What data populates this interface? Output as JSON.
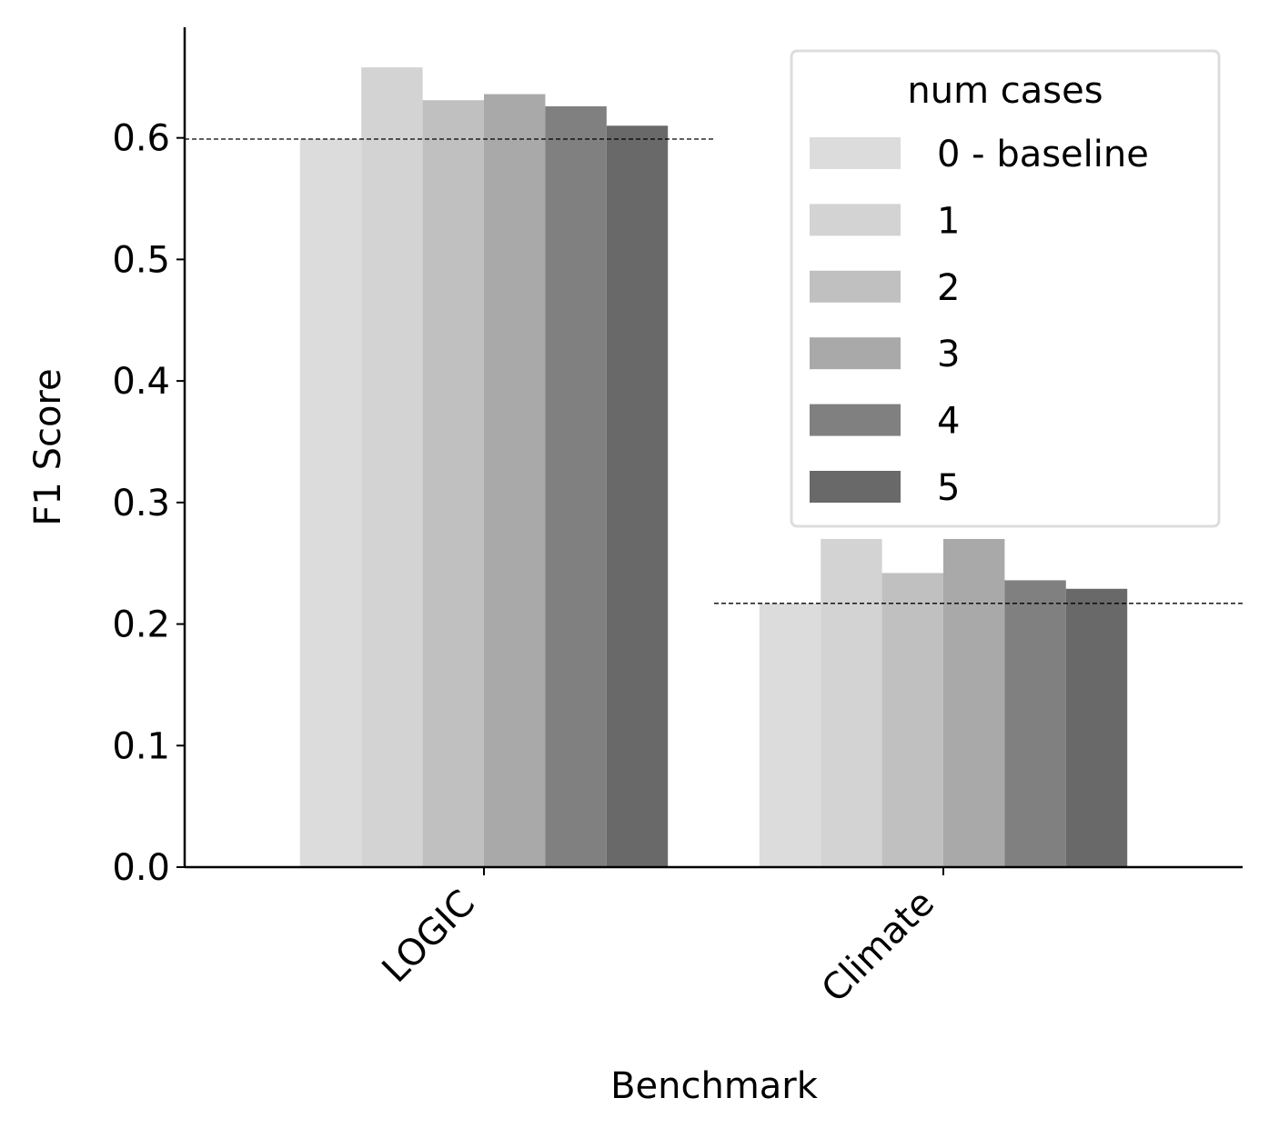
{
  "chart_data": {
    "type": "bar",
    "x_label": "Benchmark",
    "y_label": "F1 Score",
    "categories": [
      "LOGIC",
      "Climate"
    ],
    "series": [
      {
        "name": "0 - baseline",
        "color": "#dcdcdc",
        "values": [
          0.599,
          0.217
        ]
      },
      {
        "name": "1",
        "color": "#d3d3d3",
        "values": [
          0.658,
          0.27
        ]
      },
      {
        "name": "2",
        "color": "#c0c0c0",
        "values": [
          0.631,
          0.242
        ]
      },
      {
        "name": "3",
        "color": "#a9a9a9",
        "values": [
          0.636,
          0.27
        ]
      },
      {
        "name": "4",
        "color": "#808080",
        "values": [
          0.626,
          0.236
        ]
      },
      {
        "name": "5",
        "color": "#696969",
        "values": [
          0.61,
          0.229
        ]
      }
    ],
    "legend_title": "num cases",
    "legend": "upper right",
    "ylim": [
      0,
      0.691
    ],
    "yticks": [
      {
        "value": 0,
        "label": "0.0"
      },
      0.1,
      0.2,
      0.3,
      0.4,
      0.5,
      0.6
    ],
    "grid": false
  }
}
